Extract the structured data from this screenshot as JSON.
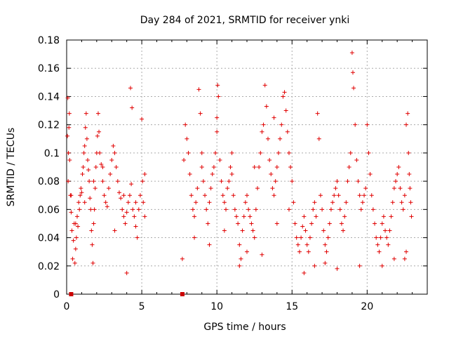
{
  "chart_data": {
    "type": "scatter",
    "title": "Day 284 of 2021, SRMTID for receiver ynki",
    "xlabel": "GPS time / hours",
    "ylabel": "SRMTID / TECUs",
    "xlim": [
      0,
      24
    ],
    "ylim": [
      0,
      0.18
    ],
    "x_ticks": [
      0,
      5,
      10,
      15,
      20
    ],
    "x_tick_labels": [
      "0",
      "5",
      "10",
      "15",
      "20"
    ],
    "y_ticks": [
      0,
      0.02,
      0.04,
      0.06,
      0.08,
      0.1,
      0.12,
      0.14,
      0.16,
      0.18
    ],
    "y_tick_labels": [
      "0",
      "0.02",
      "0.04",
      "0.06",
      "0.08",
      "0.1",
      "0.12",
      "0.14",
      "0.16",
      "0.18"
    ],
    "grid": true,
    "marker": "+",
    "color": "#e00000",
    "marker_color_zero": "#cc0000",
    "series": [
      {
        "name": "SRMTID",
        "points": [
          [
            0.05,
            0.112
          ],
          [
            0.08,
            0.139
          ],
          [
            0.1,
            0.08
          ],
          [
            0.12,
            0.1
          ],
          [
            0.15,
            0.118
          ],
          [
            0.18,
            0.128
          ],
          [
            0.2,
            0.095
          ],
          [
            0.25,
            0.07
          ],
          [
            0.3,
            0.058
          ],
          [
            0.35,
            0.045
          ],
          [
            0.4,
            0.025
          ],
          [
            0.45,
            0.038
          ],
          [
            0.5,
            0.05
          ],
          [
            0.55,
            0.022
          ],
          [
            0.6,
            0.032
          ],
          [
            0.65,
            0.04
          ],
          [
            0.7,
            0.055
          ],
          [
            0.75,
            0.048
          ],
          [
            0.8,
            0.065
          ],
          [
            0.85,
            0.06
          ],
          [
            0.9,
            0.07
          ],
          [
            0.95,
            0.075
          ],
          [
            1.0,
            0.072
          ],
          [
            1.05,
            0.085
          ],
          [
            1.1,
            0.09
          ],
          [
            1.15,
            0.1
          ],
          [
            1.2,
            0.105
          ],
          [
            1.25,
            0.118
          ],
          [
            1.3,
            0.128
          ],
          [
            1.35,
            0.11
          ],
          [
            1.4,
            0.095
          ],
          [
            1.45,
            0.088
          ],
          [
            1.5,
            0.08
          ],
          [
            1.55,
            0.068
          ],
          [
            1.6,
            0.06
          ],
          [
            1.65,
            0.045
          ],
          [
            1.7,
            0.035
          ],
          [
            1.75,
            0.022
          ],
          [
            1.8,
            0.05
          ],
          [
            1.85,
            0.06
          ],
          [
            1.9,
            0.075
          ],
          [
            1.95,
            0.09
          ],
          [
            2.0,
            0.1
          ],
          [
            2.05,
            0.112
          ],
          [
            2.1,
            0.128
          ],
          [
            2.15,
            0.115
          ],
          [
            2.2,
            0.1
          ],
          [
            2.3,
            0.092
          ],
          [
            2.4,
            0.08
          ],
          [
            2.5,
            0.07
          ],
          [
            2.6,
            0.065
          ],
          [
            2.7,
            0.062
          ],
          [
            2.8,
            0.075
          ],
          [
            2.9,
            0.085
          ],
          [
            3.0,
            0.095
          ],
          [
            3.1,
            0.105
          ],
          [
            3.2,
            0.1
          ],
          [
            3.3,
            0.09
          ],
          [
            3.4,
            0.08
          ],
          [
            3.5,
            0.072
          ],
          [
            3.6,
            0.068
          ],
          [
            3.7,
            0.06
          ],
          [
            3.8,
            0.055
          ],
          [
            3.9,
            0.05
          ],
          [
            4.0,
            0.058
          ],
          [
            4.1,
            0.065
          ],
          [
            4.2,
            0.07
          ],
          [
            4.25,
            0.146
          ],
          [
            4.3,
            0.078
          ],
          [
            4.35,
            0.132
          ],
          [
            4.4,
            0.06
          ],
          [
            4.5,
            0.055
          ],
          [
            4.6,
            0.048
          ],
          [
            4.7,
            0.04
          ],
          [
            4.8,
            0.06
          ],
          [
            4.9,
            0.07
          ],
          [
            5.0,
            0.124
          ],
          [
            5.05,
            0.08
          ],
          [
            5.1,
            0.065
          ],
          [
            5.2,
            0.055
          ],
          [
            0.3,
            0.07
          ],
          [
            0.6,
            0.05
          ],
          [
            1.2,
            0.065
          ],
          [
            1.8,
            0.08
          ],
          [
            2.4,
            0.09
          ],
          [
            3.2,
            0.045
          ],
          [
            3.8,
            0.07
          ],
          [
            4.6,
            0.065
          ],
          [
            5.2,
            0.085
          ],
          [
            4.0,
            0.015
          ],
          [
            7.7,
            0.025
          ],
          [
            7.8,
            0.095
          ],
          [
            7.9,
            0.12
          ],
          [
            8.0,
            0.11
          ],
          [
            8.1,
            0.1
          ],
          [
            8.2,
            0.085
          ],
          [
            8.3,
            0.07
          ],
          [
            8.4,
            0.06
          ],
          [
            8.5,
            0.055
          ],
          [
            8.6,
            0.065
          ],
          [
            8.7,
            0.075
          ],
          [
            8.8,
            0.145
          ],
          [
            8.9,
            0.128
          ],
          [
            9.0,
            0.09
          ],
          [
            9.1,
            0.08
          ],
          [
            9.2,
            0.07
          ],
          [
            9.3,
            0.06
          ],
          [
            9.4,
            0.05
          ],
          [
            9.5,
            0.065
          ],
          [
            9.6,
            0.075
          ],
          [
            9.7,
            0.085
          ],
          [
            9.8,
            0.09
          ],
          [
            9.9,
            0.1
          ],
          [
            10.0,
            0.125
          ],
          [
            10.05,
            0.148
          ],
          [
            10.1,
            0.14
          ],
          [
            10.2,
            0.095
          ],
          [
            10.3,
            0.08
          ],
          [
            10.4,
            0.07
          ],
          [
            10.5,
            0.065
          ],
          [
            10.6,
            0.06
          ],
          [
            10.7,
            0.075
          ],
          [
            10.8,
            0.08
          ],
          [
            10.9,
            0.09
          ],
          [
            11.0,
            0.085
          ],
          [
            11.1,
            0.07
          ],
          [
            11.2,
            0.06
          ],
          [
            11.3,
            0.055
          ],
          [
            11.4,
            0.05
          ],
          [
            11.5,
            0.035
          ],
          [
            11.6,
            0.025
          ],
          [
            11.7,
            0.045
          ],
          [
            11.8,
            0.055
          ],
          [
            11.9,
            0.065
          ],
          [
            12.0,
            0.07
          ],
          [
            12.1,
            0.06
          ],
          [
            12.2,
            0.055
          ],
          [
            12.3,
            0.05
          ],
          [
            12.4,
            0.045
          ],
          [
            12.5,
            0.04
          ],
          [
            12.6,
            0.06
          ],
          [
            12.7,
            0.075
          ],
          [
            12.8,
            0.09
          ],
          [
            12.9,
            0.1
          ],
          [
            13.0,
            0.115
          ],
          [
            13.1,
            0.12
          ],
          [
            13.2,
            0.148
          ],
          [
            13.3,
            0.133
          ],
          [
            13.4,
            0.11
          ],
          [
            13.5,
            0.095
          ],
          [
            13.6,
            0.085
          ],
          [
            13.7,
            0.075
          ],
          [
            13.8,
            0.07
          ],
          [
            13.9,
            0.08
          ],
          [
            14.0,
            0.09
          ],
          [
            14.1,
            0.1
          ],
          [
            14.2,
            0.11
          ],
          [
            14.3,
            0.12
          ],
          [
            14.4,
            0.14
          ],
          [
            14.5,
            0.143
          ],
          [
            14.6,
            0.13
          ],
          [
            14.7,
            0.115
          ],
          [
            14.8,
            0.1
          ],
          [
            14.9,
            0.09
          ],
          [
            15.0,
            0.08
          ],
          [
            15.1,
            0.065
          ],
          [
            15.2,
            0.05
          ],
          [
            15.3,
            0.04
          ],
          [
            15.4,
            0.035
          ],
          [
            15.5,
            0.03
          ],
          [
            15.6,
            0.04
          ],
          [
            15.7,
            0.048
          ],
          [
            15.8,
            0.055
          ],
          [
            15.9,
            0.045
          ],
          [
            16.0,
            0.035
          ],
          [
            16.1,
            0.03
          ],
          [
            16.2,
            0.04
          ],
          [
            16.3,
            0.05
          ],
          [
            16.4,
            0.06
          ],
          [
            16.5,
            0.065
          ],
          [
            16.6,
            0.055
          ],
          [
            16.7,
            0.128
          ],
          [
            16.8,
            0.11
          ],
          [
            16.9,
            0.07
          ],
          [
            17.0,
            0.06
          ],
          [
            17.1,
            0.045
          ],
          [
            17.2,
            0.035
          ],
          [
            17.3,
            0.03
          ],
          [
            17.4,
            0.04
          ],
          [
            17.5,
            0.05
          ],
          [
            17.6,
            0.06
          ],
          [
            17.7,
            0.065
          ],
          [
            17.8,
            0.07
          ],
          [
            17.9,
            0.075
          ],
          [
            18.0,
            0.08
          ],
          [
            18.1,
            0.07
          ],
          [
            18.2,
            0.06
          ],
          [
            18.3,
            0.05
          ],
          [
            18.4,
            0.045
          ],
          [
            18.5,
            0.055
          ],
          [
            18.6,
            0.065
          ],
          [
            18.7,
            0.08
          ],
          [
            18.8,
            0.09
          ],
          [
            18.9,
            0.1
          ],
          [
            19.0,
            0.171
          ],
          [
            19.05,
            0.157
          ],
          [
            19.1,
            0.146
          ],
          [
            19.2,
            0.12
          ],
          [
            19.3,
            0.095
          ],
          [
            19.4,
            0.08
          ],
          [
            19.5,
            0.07
          ],
          [
            19.6,
            0.06
          ],
          [
            19.7,
            0.065
          ],
          [
            19.8,
            0.07
          ],
          [
            19.9,
            0.075
          ],
          [
            20.0,
            0.12
          ],
          [
            20.1,
            0.1
          ],
          [
            20.2,
            0.085
          ],
          [
            20.3,
            0.07
          ],
          [
            20.4,
            0.06
          ],
          [
            20.5,
            0.05
          ],
          [
            20.6,
            0.04
          ],
          [
            20.7,
            0.035
          ],
          [
            20.8,
            0.03
          ],
          [
            20.9,
            0.04
          ],
          [
            21.0,
            0.05
          ],
          [
            21.1,
            0.055
          ],
          [
            21.2,
            0.045
          ],
          [
            21.3,
            0.04
          ],
          [
            21.4,
            0.035
          ],
          [
            21.5,
            0.045
          ],
          [
            21.6,
            0.055
          ],
          [
            21.7,
            0.065
          ],
          [
            21.8,
            0.075
          ],
          [
            21.9,
            0.08
          ],
          [
            22.0,
            0.085
          ],
          [
            22.1,
            0.09
          ],
          [
            22.2,
            0.075
          ],
          [
            22.3,
            0.065
          ],
          [
            22.4,
            0.06
          ],
          [
            22.5,
            0.07
          ],
          [
            22.6,
            0.12
          ],
          [
            22.7,
            0.128
          ],
          [
            22.75,
            0.1
          ],
          [
            22.8,
            0.085
          ],
          [
            22.85,
            0.075
          ],
          [
            22.9,
            0.065
          ],
          [
            22.95,
            0.055
          ],
          [
            22.6,
            0.03
          ],
          [
            22.5,
            0.025
          ],
          [
            15.8,
            0.015
          ],
          [
            16.5,
            0.02
          ],
          [
            17.2,
            0.022
          ],
          [
            18.0,
            0.018
          ],
          [
            19.5,
            0.02
          ],
          [
            21.0,
            0.02
          ],
          [
            21.8,
            0.025
          ],
          [
            11.5,
            0.02
          ],
          [
            12.0,
            0.03
          ],
          [
            13.0,
            0.028
          ],
          [
            8.5,
            0.04
          ],
          [
            9.5,
            0.035
          ],
          [
            10.5,
            0.045
          ],
          [
            14.0,
            0.05
          ],
          [
            14.8,
            0.06
          ],
          [
            11.0,
            0.1
          ],
          [
            12.5,
            0.09
          ],
          [
            9.0,
            0.1
          ],
          [
            10.0,
            0.115
          ],
          [
            13.8,
            0.125
          ]
        ]
      }
    ],
    "zero_markers": [
      0.3,
      7.7
    ]
  }
}
